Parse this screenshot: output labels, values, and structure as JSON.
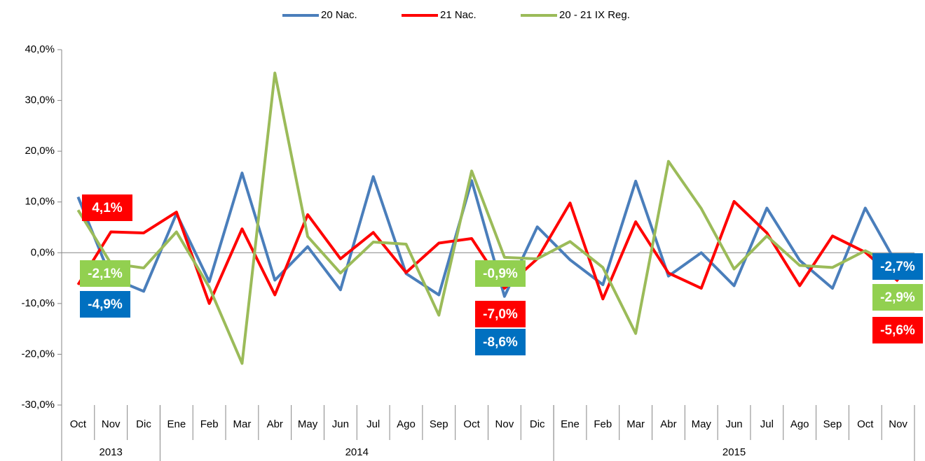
{
  "chart_data": {
    "type": "line",
    "categories": [
      "Oct",
      "Nov",
      "Dic",
      "Ene",
      "Feb",
      "Mar",
      "Abr",
      "May",
      "Jun",
      "Jul",
      "Ago",
      "Sep",
      "Oct",
      "Nov",
      "Dic",
      "Ene",
      "Feb",
      "Mar",
      "Abr",
      "May",
      "Jun",
      "Jul",
      "Ago",
      "Sep",
      "Oct",
      "Nov"
    ],
    "groups": [
      {
        "name": "2013",
        "count": 3
      },
      {
        "name": "2014",
        "count": 12
      },
      {
        "name": "2015",
        "count": 11
      }
    ],
    "series": [
      {
        "name": "20 Nac.",
        "color": "#4a7ebb",
        "label_color": "#0070c0",
        "values": [
          11.0,
          -4.9,
          -7.6,
          7.7,
          -5.7,
          15.7,
          -5.4,
          1.2,
          -7.3,
          15.0,
          -4.1,
          -8.3,
          14.2,
          -8.6,
          5.1,
          -1.4,
          -6.3,
          14.1,
          -4.6,
          0.0,
          -6.5,
          8.8,
          -1.5,
          -7.0,
          8.8,
          -2.7
        ],
        "value_labels": [
          null,
          "-4,9%",
          null,
          null,
          null,
          null,
          null,
          null,
          null,
          null,
          null,
          null,
          null,
          "-8,6%",
          null,
          null,
          null,
          null,
          null,
          null,
          null,
          null,
          null,
          null,
          null,
          "-2,7%"
        ]
      },
      {
        "name": "21 Nac.",
        "color": "#ff0000",
        "label_color": "#ff0000",
        "values": [
          -6.3,
          4.1,
          3.9,
          8.0,
          -10.0,
          4.7,
          -8.3,
          7.5,
          -1.2,
          4.0,
          -3.9,
          1.9,
          2.8,
          -7.0,
          -1.2,
          9.8,
          -9.1,
          6.1,
          -4.0,
          -7.0,
          10.1,
          3.9,
          -6.5,
          3.3,
          0.1,
          -5.6
        ],
        "value_labels": [
          null,
          "4,1%",
          null,
          null,
          null,
          null,
          null,
          null,
          null,
          null,
          null,
          null,
          null,
          "-7,0%",
          null,
          null,
          null,
          null,
          null,
          null,
          null,
          null,
          null,
          null,
          null,
          "-5,6%"
        ]
      },
      {
        "name": "20 - 21 IX Reg.",
        "color": "#9bbb59",
        "label_color": "#92d050",
        "values": [
          8.4,
          -2.1,
          -3.0,
          4.1,
          -6.8,
          -21.8,
          35.4,
          3.2,
          -4.0,
          2.1,
          1.7,
          -12.3,
          16.1,
          -0.9,
          -1.2,
          2.2,
          -2.9,
          -15.9,
          18.0,
          8.7,
          -3.2,
          3.3,
          -2.5,
          -2.9,
          0.4,
          -2.9
        ],
        "value_labels": [
          null,
          "-2,1%",
          null,
          null,
          null,
          null,
          null,
          null,
          null,
          null,
          null,
          null,
          null,
          "-0,9%",
          null,
          null,
          null,
          null,
          null,
          null,
          null,
          null,
          null,
          null,
          null,
          "-2,9%"
        ]
      }
    ],
    "ylim": [
      -30,
      40
    ],
    "yticks": [
      {
        "value": -30,
        "label": "-30,0%"
      },
      {
        "value": -20,
        "label": "-20,0%"
      },
      {
        "value": -10,
        "label": "-10,0%"
      },
      {
        "value": 0,
        "label": "0,0%"
      },
      {
        "value": 10,
        "label": "10,0%"
      },
      {
        "value": 20,
        "label": "20,0%"
      },
      {
        "value": 30,
        "label": "30,0%"
      },
      {
        "value": 40,
        "label": "40,0%"
      }
    ],
    "legend": "top"
  }
}
